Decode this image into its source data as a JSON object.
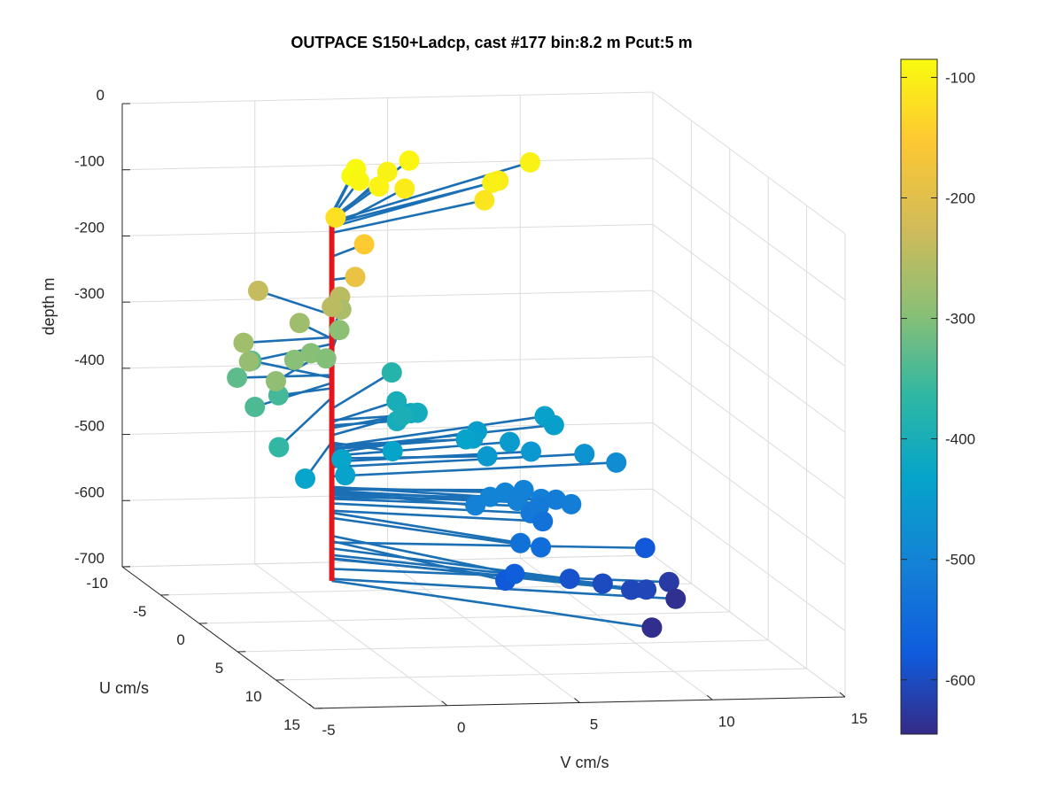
{
  "chart_data": {
    "type": "scatter",
    "title": "OUTPACE S150+Ladcp, cast #177 bin:8.2 m  Pcut:5 m",
    "xlabel": "V cm/s",
    "ylabel": "U cm/s",
    "zlabel": "depth m",
    "xlim": [
      -5,
      15
    ],
    "ylim": [
      -10,
      15
    ],
    "zlim": [
      -700,
      0
    ],
    "xticks": [
      "-5",
      "0",
      "5",
      "10",
      "15"
    ],
    "yticks": [
      "-10",
      "-5",
      "0",
      "5",
      "10",
      "15"
    ],
    "zticks": [
      "0",
      "-100",
      "-200",
      "-300",
      "-400",
      "-500",
      "-600",
      "-700"
    ],
    "grid": true,
    "view": "3d",
    "colorbar": {
      "colormap": "parula",
      "range": [
        -645,
        -85
      ],
      "ticks": [
        "-100",
        "-200",
        "-300",
        "-400",
        "-500",
        "-600"
      ],
      "tick_values": [
        -100,
        -200,
        -300,
        -400,
        -500,
        -600
      ]
    },
    "reference_line": {
      "color": "#e8141c",
      "z_top": -90,
      "z_bottom": -640
    },
    "stick_color": "#1a6fb5",
    "grid_color": "#dcdcdc",
    "series": [
      {
        "type": "stick-scatter",
        "points": [
          {
            "v": 2.6,
            "u": -6.4,
            "z": -85
          },
          {
            "v": 3.2,
            "u": -7.9,
            "z": -88
          },
          {
            "v": 2.8,
            "u": -6.1,
            "z": -90
          },
          {
            "v": 3.4,
            "u": -5.6,
            "z": -95
          },
          {
            "v": 5.7,
            "u": -9.6,
            "z": -92
          },
          {
            "v": 4.5,
            "u": -8.3,
            "z": -97
          },
          {
            "v": 10.2,
            "u": -9.4,
            "z": -97
          },
          {
            "v": 7.9,
            "u": -6.4,
            "z": -100
          },
          {
            "v": 8.4,
            "u": -7.3,
            "z": -105
          },
          {
            "v": 4.6,
            "u": -6.4,
            "z": -106
          },
          {
            "v": 7.2,
            "u": -5.0,
            "z": -114
          },
          {
            "v": 1.1,
            "u": -3.3,
            "z": -120
          },
          {
            "v": 1.8,
            "u": -2.0,
            "z": -150
          },
          {
            "v": 1.0,
            "u": -0.4,
            "z": -185
          },
          {
            "v": -1.5,
            "u": -4.4,
            "z": -238
          },
          {
            "v": 0.7,
            "u": -2.4,
            "z": -247
          },
          {
            "v": 1.5,
            "u": -4.1,
            "z": -247
          },
          {
            "v": 1.4,
            "u": -3.6,
            "z": -262
          },
          {
            "v": -3.5,
            "u": 0.6,
            "z": -272
          },
          {
            "v": -0.4,
            "u": -2.8,
            "z": -274
          },
          {
            "v": -3.9,
            "u": 2.7,
            "z": -282
          },
          {
            "v": -3.7,
            "u": 5.5,
            "z": -288
          },
          {
            "v": 1.3,
            "u": -3.5,
            "z": -292
          },
          {
            "v": -1.7,
            "u": 1.0,
            "z": -296
          },
          {
            "v": -0.7,
            "u": -0.3,
            "z": -298
          },
          {
            "v": -0.3,
            "u": 0.3,
            "z": -301
          },
          {
            "v": -3.6,
            "u": 0.1,
            "z": -329
          },
          {
            "v": -2.1,
            "u": -3.2,
            "z": -333
          },
          {
            "v": -4.0,
            "u": 3.8,
            "z": -341
          },
          {
            "v": -2.3,
            "u": 1.0,
            "z": -349
          },
          {
            "v": -4.4,
            "u": 8.3,
            "z": -363
          },
          {
            "v": 4.0,
            "u": -6.0,
            "z": -380
          },
          {
            "v": 2.8,
            "u": -0.5,
            "z": -397
          },
          {
            "v": 3.4,
            "u": -3.3,
            "z": -400
          },
          {
            "v": 2.6,
            "u": -0.5,
            "z": -405
          },
          {
            "v": 3.9,
            "u": -2.3,
            "z": -409
          },
          {
            "v": 4.0,
            "u": -3.5,
            "z": -420
          },
          {
            "v": -2.8,
            "u": 6.2,
            "z": -430
          },
          {
            "v": -0.5,
            "u": 3.0,
            "z": -430
          },
          {
            "v": 1.8,
            "u": 1.7,
            "z": -431
          },
          {
            "v": -1.0,
            "u": 5.2,
            "z": -435
          },
          {
            "v": 5.2,
            "u": -0.5,
            "z": -435
          },
          {
            "v": 9.3,
            "u": -4.4,
            "z": -437
          },
          {
            "v": 9.3,
            "u": -3.2,
            "z": -440
          },
          {
            "v": 5.7,
            "u": -1.3,
            "z": -441
          },
          {
            "v": 6.4,
            "u": -3.2,
            "z": -447
          },
          {
            "v": 7.2,
            "u": -1.7,
            "z": -451
          },
          {
            "v": 5.8,
            "u": 0.2,
            "z": -455
          },
          {
            "v": 7.8,
            "u": -1.0,
            "z": -460
          },
          {
            "v": 9.9,
            "u": -1.3,
            "z": -468
          },
          {
            "v": 11.1,
            "u": -1.3,
            "z": -482
          },
          {
            "v": 5.3,
            "u": 2.3,
            "z": -498
          },
          {
            "v": 6.1,
            "u": 1.5,
            "z": -499
          },
          {
            "v": 7.0,
            "u": 0.8,
            "z": -502
          },
          {
            "v": 6.3,
            "u": 2.4,
            "z": -504
          },
          {
            "v": 4.6,
            "u": 2.8,
            "z": -506
          },
          {
            "v": 7.4,
            "u": 1.7,
            "z": -508
          },
          {
            "v": 8.3,
            "u": 2.5,
            "z": -510
          },
          {
            "v": 8.1,
            "u": 1.2,
            "z": -514
          },
          {
            "v": 7.2,
            "u": 2.1,
            "z": -516
          },
          {
            "v": 6.8,
            "u": 2.4,
            "z": -523
          },
          {
            "v": 7.2,
            "u": 2.6,
            "z": -534
          },
          {
            "v": 5.4,
            "u": 5.9,
            "z": -537
          },
          {
            "v": 6.2,
            "u": 5.8,
            "z": -545
          },
          {
            "v": 4.8,
            "u": 7.2,
            "z": -572
          },
          {
            "v": 4.4,
            "u": 7.4,
            "z": -580
          },
          {
            "v": 11.2,
            "u": 2.1,
            "z": -582
          },
          {
            "v": 7.2,
            "u": 6.1,
            "z": -591
          },
          {
            "v": 8.5,
            "u": 5.9,
            "z": -601
          },
          {
            "v": 9.4,
            "u": 6.5,
            "z": -606
          },
          {
            "v": 10.0,
            "u": 6.4,
            "z": -607
          },
          {
            "v": 11.7,
            "u": 3.5,
            "z": -622
          },
          {
            "v": 11.6,
            "u": 4.7,
            "z": -637
          },
          {
            "v": 9.4,
            "u": 9.2,
            "z": -640
          }
        ]
      }
    ]
  }
}
